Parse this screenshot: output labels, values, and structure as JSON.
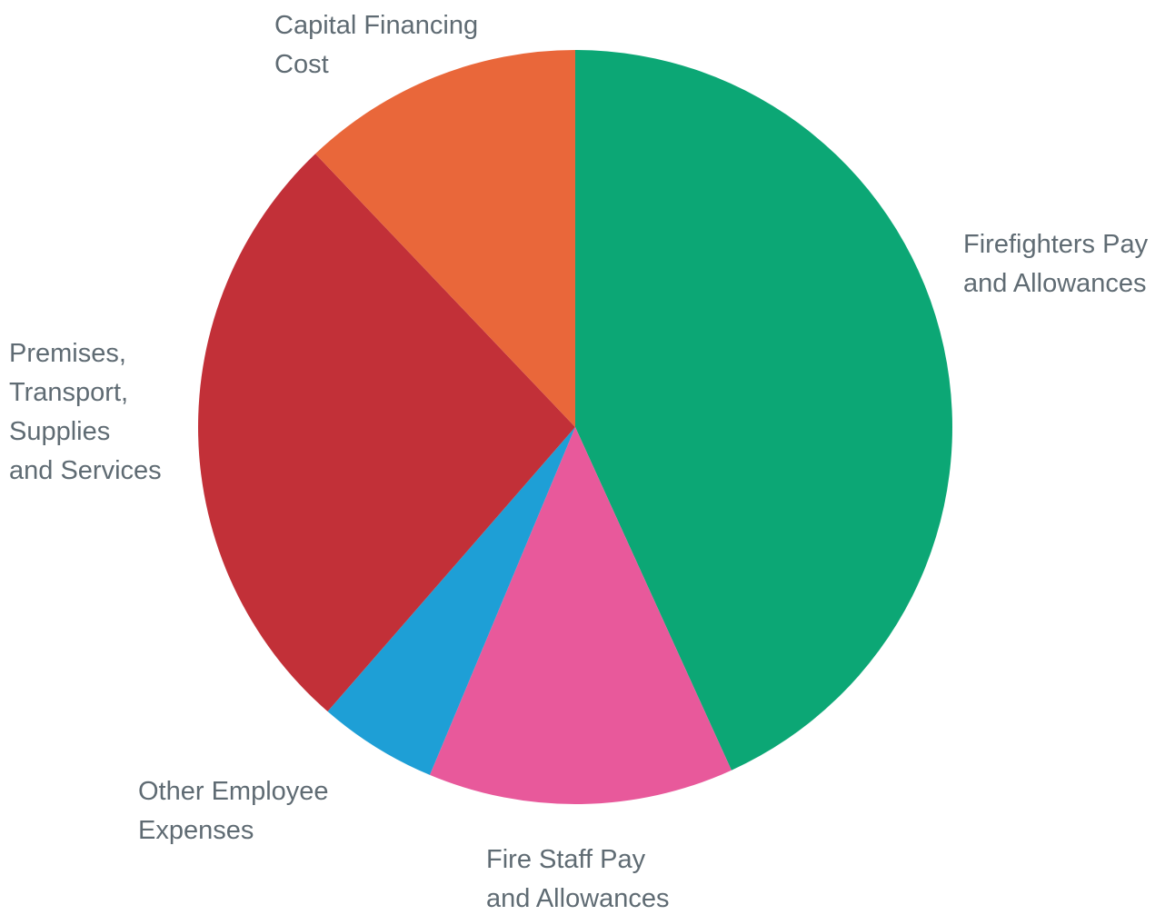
{
  "chart_data": {
    "type": "pie",
    "title": "",
    "start_angle_deg": 0,
    "direction": "clockwise",
    "slices": [
      {
        "label_lines": [
          "Firefighters Pay",
          "and Allowances"
        ],
        "value": 43.2,
        "color": "#0ca775"
      },
      {
        "label_lines": [
          "Fire Staff Pay",
          "and Allowances"
        ],
        "value": 13.1,
        "color": "#e8599b"
      },
      {
        "label_lines": [
          "Other Employee",
          "Expenses"
        ],
        "value": 5.1,
        "color": "#1e9fd6"
      },
      {
        "label_lines": [
          "Premises,",
          "Transport,",
          "Supplies",
          "and Services"
        ],
        "value": 26.5,
        "color": "#c23038"
      },
      {
        "label_lines": [
          "Capital Financing",
          "Cost"
        ],
        "value": 12.1,
        "color": "#e9673a"
      }
    ]
  }
}
